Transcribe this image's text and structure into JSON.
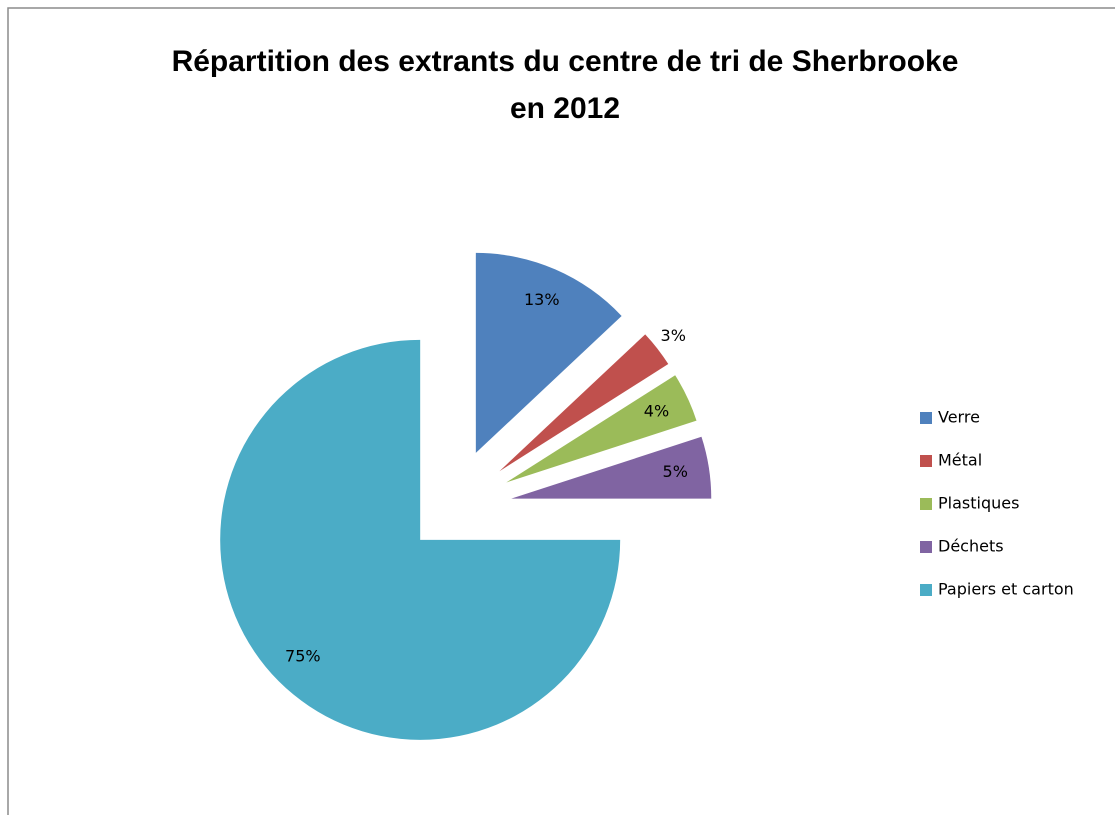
{
  "chart_data": {
    "type": "pie",
    "title": "Répartition des extrants du centre de tri de Sherbrooke en 2012",
    "categories": [
      "Verre",
      "Métal",
      "Plastiques",
      "Déchets",
      "Papiers et carton"
    ],
    "values": [
      13,
      3,
      4,
      5,
      75
    ],
    "value_labels": [
      "13%",
      "3%",
      "4%",
      "5%",
      "75%"
    ],
    "colors": [
      "#4f81bd",
      "#c0504d",
      "#9bbb59",
      "#8064a2",
      "#4bacc6"
    ],
    "legend": "right"
  }
}
